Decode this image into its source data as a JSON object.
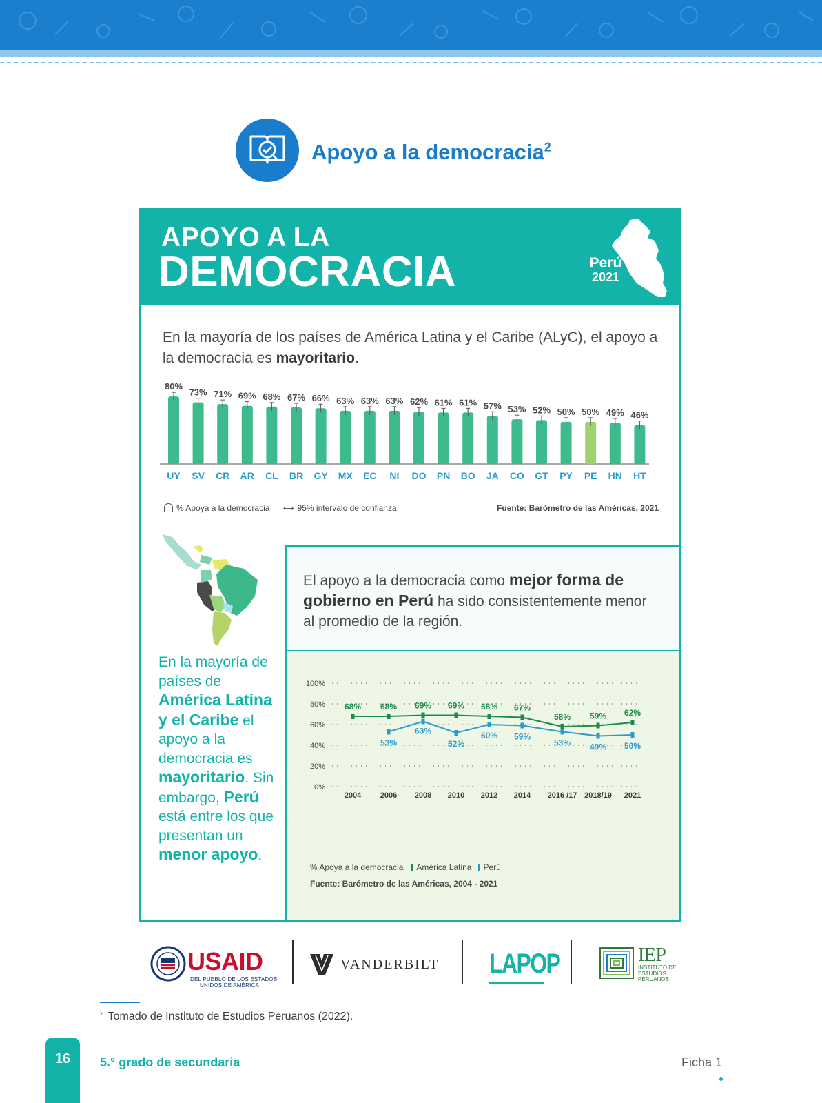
{
  "section": {
    "title": "Apoyo a la democracia",
    "title_sup": "2",
    "icon": "book-check-icon"
  },
  "banner": {
    "line1": "APOYO A LA",
    "line2": "DEMOCRACIA",
    "country": "Perú",
    "year": "2021",
    "map_icon": "peru-map-icon"
  },
  "intro": {
    "text": "En la mayoría de los países de América Latina y el Caribe (ALyC), el apoyo a la democracia es ",
    "bold": "mayoritario",
    "end": "."
  },
  "bar_legend": {
    "support": "% Apoya a la democracia",
    "ci": "95% intervalo de confianza",
    "source": "Fuente: Barómetro de las Américas, 2021"
  },
  "left_text": {
    "p1": "En la mayoría de países de ",
    "b1": "América Latina y el Caribe",
    "p2": " el apoyo a la democracia es ",
    "b2": "mayoritario",
    "p3": ". Sin embargo, ",
    "b3": "Perú",
    "p4": " está entre los que presentan un ",
    "b4": "menor apoyo",
    "p5": "."
  },
  "right_text": {
    "p1": "El apoyo a la democracia como ",
    "b1": "mejor forma de gobierno en Perú",
    "p2": " ha sido consistentemente menor al promedio de la región."
  },
  "line_legend": {
    "label": "% Apoya a la democracia",
    "al": "América Latina",
    "pe": "Perú",
    "source": "Fuente: Barómetro de las Américas, 2004 - 2021"
  },
  "logos": {
    "usaid": "USAID",
    "usaid_sub1": "DEL PUEBLO DE LOS ESTADOS",
    "usaid_sub2": "UNIDOS DE AMÉRICA",
    "vanderbilt": "VANDERBILT",
    "lapop": "LAPOP",
    "iep": "IEP",
    "iep_sub": "INSTITUTO DE ESTUDIOS PERUANOS"
  },
  "footnote": {
    "num": "2",
    "text": "Tomado de Instituto de Estudios Peruanos (2022)."
  },
  "footer": {
    "page": "16",
    "grade": "5.° grado de secundaria",
    "ficha": "Ficha 1"
  },
  "colors": {
    "teal": "#13b3aa",
    "blue": "#1a7ccd",
    "bar": "#3dbb8d",
    "bar_peru": "#9fd36f",
    "al_line": "#1f8a4c",
    "pe_line": "#2a9cc9"
  },
  "chart_data": [
    {
      "type": "bar",
      "categories": [
        "UY",
        "SV",
        "CR",
        "AR",
        "CL",
        "BR",
        "GY",
        "MX",
        "EC",
        "NI",
        "DO",
        "PN",
        "BO",
        "JA",
        "CO",
        "GT",
        "PY",
        "PE",
        "HN",
        "HT"
      ],
      "values": [
        80,
        73,
        71,
        69,
        68,
        67,
        66,
        63,
        63,
        63,
        62,
        61,
        61,
        57,
        53,
        52,
        50,
        50,
        49,
        46
      ],
      "value_labels": [
        "80%",
        "73%",
        "71%",
        "69%",
        "68%",
        "67%",
        "66%",
        "63%",
        "63%",
        "63%",
        "62%",
        "61%",
        "61%",
        "57%",
        "53%",
        "52%",
        "50%",
        "50%",
        "49%",
        "46%"
      ],
      "highlight": "PE",
      "ylim": [
        0,
        85
      ],
      "error_bars": true,
      "legend": "bottom-left"
    },
    {
      "type": "line",
      "x": [
        "2004",
        "2006",
        "2008",
        "2010",
        "2012",
        "2014",
        "2016 /17",
        "2018/19",
        "2021"
      ],
      "yticks": [
        "100%",
        "80%",
        "60%",
        "40%",
        "20%",
        "0%"
      ],
      "ylim": [
        0,
        100
      ],
      "grid": true,
      "series": [
        {
          "name": "América Latina",
          "values": [
            68,
            68,
            69,
            69,
            68,
            67,
            58,
            59,
            62
          ],
          "labels": [
            "68%",
            "68%",
            "69%",
            "69%",
            "68%",
            "67%",
            "58%",
            "59%",
            "62%"
          ]
        },
        {
          "name": "Perú",
          "values": [
            null,
            53,
            63,
            52,
            60,
            59,
            53,
            49,
            50
          ],
          "labels": [
            "",
            "53%",
            "63%",
            "52%",
            "60%",
            "59%",
            "53%",
            "49%",
            "50%"
          ]
        }
      ]
    }
  ]
}
